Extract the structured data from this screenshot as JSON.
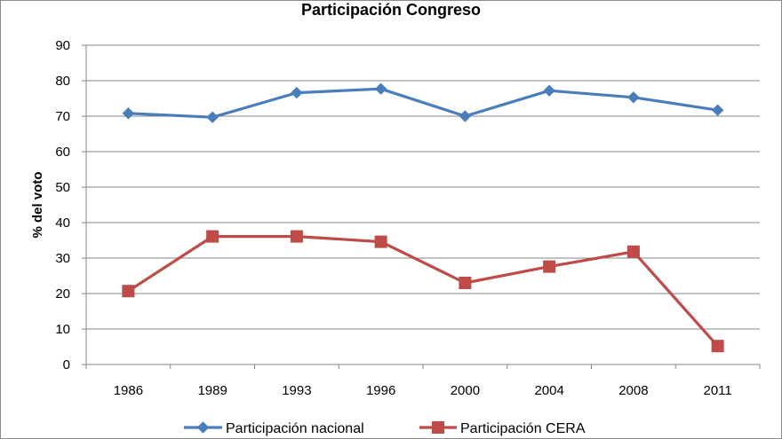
{
  "chart_data": {
    "type": "line",
    "title": "Participación Congreso",
    "xlabel": "",
    "ylabel": "% del voto",
    "categories": [
      "1986",
      "1989",
      "1993",
      "1996",
      "2000",
      "2004",
      "2008",
      "2011"
    ],
    "ylim": [
      0,
      90
    ],
    "yticks": [
      0,
      10,
      20,
      30,
      40,
      50,
      60,
      70,
      80,
      90
    ],
    "grid": true,
    "legend_position": "bottom",
    "series": [
      {
        "name": "Participación nacional",
        "color": "#4a7ebb",
        "marker": "diamond",
        "values": [
          70.8,
          69.7,
          76.6,
          77.7,
          70.0,
          77.2,
          75.3,
          71.7
        ]
      },
      {
        "name": "Participación CERA",
        "color": "#be4b48",
        "marker": "square",
        "values": [
          20.7,
          36.1,
          36.1,
          34.6,
          23.0,
          27.6,
          31.8,
          5.2
        ]
      }
    ]
  }
}
